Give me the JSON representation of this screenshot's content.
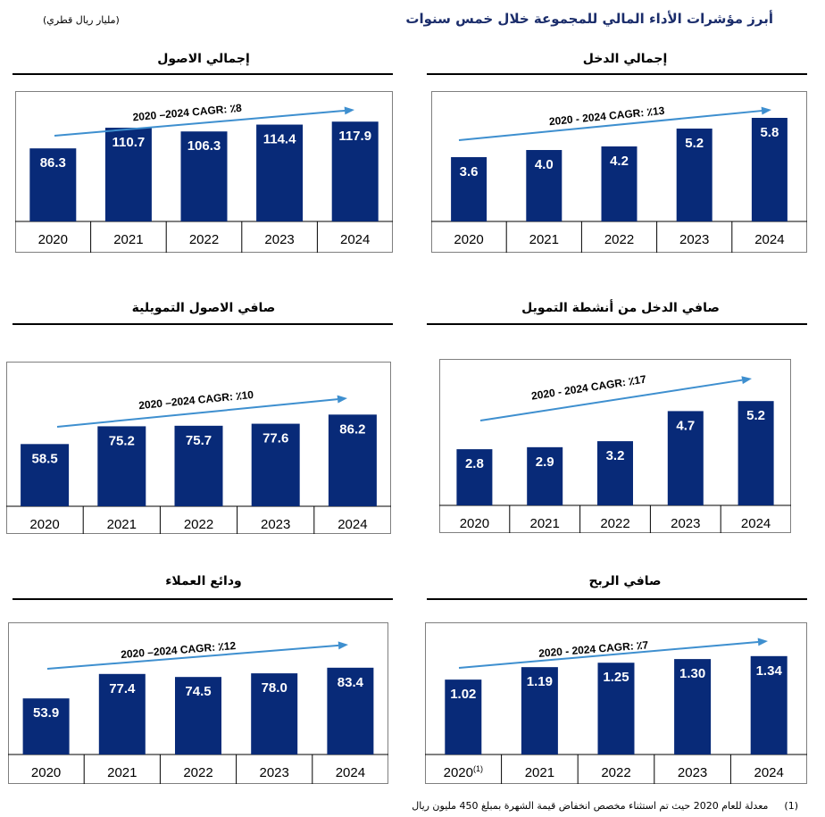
{
  "page": {
    "title": "أبرز مؤشرات الأداء المالي للمجموعة خلال خمس سنوات",
    "unit_note": "(مليار ريال قطري)",
    "footnote_marker": "(1)",
    "footnote_text": "معدلة للعام 2020 حيث تم استثناء مخصص انخفاض قيمة الشهرة بمبلغ 450 مليون ريال"
  },
  "colors": {
    "bar": "#082a78",
    "arrow": "#3e8fcf",
    "label": "#ffffff"
  },
  "chart_data": [
    {
      "id": "total-income",
      "type": "bar",
      "title": "إجمالي الدخل",
      "cagr_label": "2020 - 2024 CAGR:  ٪13",
      "categories": [
        "2020",
        "2021",
        "2022",
        "2023",
        "2024"
      ],
      "category_suffixes": [
        "",
        "",
        "",
        "",
        ""
      ],
      "values": [
        3.6,
        4.0,
        4.2,
        5.2,
        5.8
      ],
      "value_labels": [
        "3.6",
        "4.0",
        "4.2",
        "5.2",
        "5.8"
      ],
      "ylim": [
        0,
        7.3
      ]
    },
    {
      "id": "total-assets",
      "type": "bar",
      "title": "إجمالي الاصول",
      "cagr_label": "2020 –2024 CAGR:  ٪8",
      "categories": [
        "2020",
        "2021",
        "2022",
        "2023",
        "2024"
      ],
      "category_suffixes": [
        "",
        "",
        "",
        "",
        ""
      ],
      "values": [
        86.3,
        110.7,
        106.3,
        114.4,
        117.9
      ],
      "value_labels": [
        "86.3",
        "110.7",
        "106.3",
        "114.4",
        "117.9"
      ],
      "ylim": [
        0,
        154
      ]
    },
    {
      "id": "net-financing-income",
      "type": "bar",
      "title": "صافي الدخل من أنشطة التمويل",
      "cagr_label": "2020 - 2024 CAGR:  ٪17",
      "categories": [
        "2020",
        "2021",
        "2022",
        "2023",
        "2024"
      ],
      "category_suffixes": [
        "",
        "",
        "",
        "",
        ""
      ],
      "values": [
        2.8,
        2.9,
        3.2,
        4.7,
        5.2
      ],
      "value_labels": [
        "2.8",
        "2.9",
        "3.2",
        "4.7",
        "5.2"
      ],
      "ylim": [
        0,
        7.3
      ]
    },
    {
      "id": "net-financing-assets",
      "type": "bar",
      "title": "صافي الاصول التمويلية",
      "cagr_label": "2020 –2024 CAGR:  ٪10",
      "categories": [
        "2020",
        "2021",
        "2022",
        "2023",
        "2024"
      ],
      "category_suffixes": [
        "",
        "",
        "",
        "",
        ""
      ],
      "values": [
        58.5,
        75.2,
        75.7,
        77.6,
        86.2
      ],
      "value_labels": [
        "58.5",
        "75.2",
        "75.7",
        "77.6",
        "86.2"
      ],
      "ylim": [
        0,
        136
      ]
    },
    {
      "id": "net-profit",
      "type": "bar",
      "title": "صافي الربح",
      "cagr_label": "2020 - 2024 CAGR:  ٪7",
      "categories": [
        "2020",
        "2021",
        "2022",
        "2023",
        "2024"
      ],
      "category_suffixes": [
        "(1)",
        "",
        "",
        "",
        ""
      ],
      "values": [
        1.02,
        1.19,
        1.25,
        1.3,
        1.34
      ],
      "value_labels": [
        "1.02",
        "1.19",
        "1.25",
        "1.30",
        "1.34"
      ],
      "ylim": [
        0,
        1.8
      ]
    },
    {
      "id": "customer-deposits",
      "type": "bar",
      "title": "ودائع العملاء",
      "cagr_label": "2020 –2024 CAGR:  ٪12",
      "categories": [
        "2020",
        "2021",
        "2022",
        "2023",
        "2024"
      ],
      "category_suffixes": [
        "",
        "",
        "",
        "",
        ""
      ],
      "values": [
        53.9,
        77.4,
        74.5,
        78.0,
        83.4
      ],
      "value_labels": [
        "53.9",
        "77.4",
        "74.5",
        "78.0",
        "83.4"
      ],
      "ylim": [
        0,
        127
      ]
    }
  ]
}
